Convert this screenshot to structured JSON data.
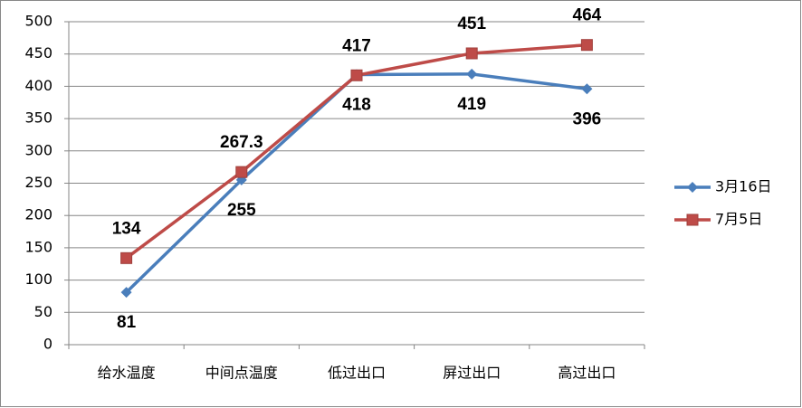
{
  "chart_data": {
    "type": "line",
    "categories": [
      "给水温度",
      "中间点温度",
      "低过出口",
      "屏过出口",
      "高过出口"
    ],
    "series": [
      {
        "name": "3月16日",
        "color": "#4a7ebb",
        "marker": "diamond",
        "values": [
          81,
          255,
          418,
          419,
          396
        ]
      },
      {
        "name": "7月5日",
        "color": "#be4b48",
        "marker": "square",
        "values": [
          134,
          267.3,
          417,
          451,
          464
        ]
      }
    ],
    "ylim": [
      0,
      500
    ],
    "yticks": [
      0,
      50,
      100,
      150,
      200,
      250,
      300,
      350,
      400,
      450,
      500
    ],
    "grid": true,
    "legend": "right"
  }
}
